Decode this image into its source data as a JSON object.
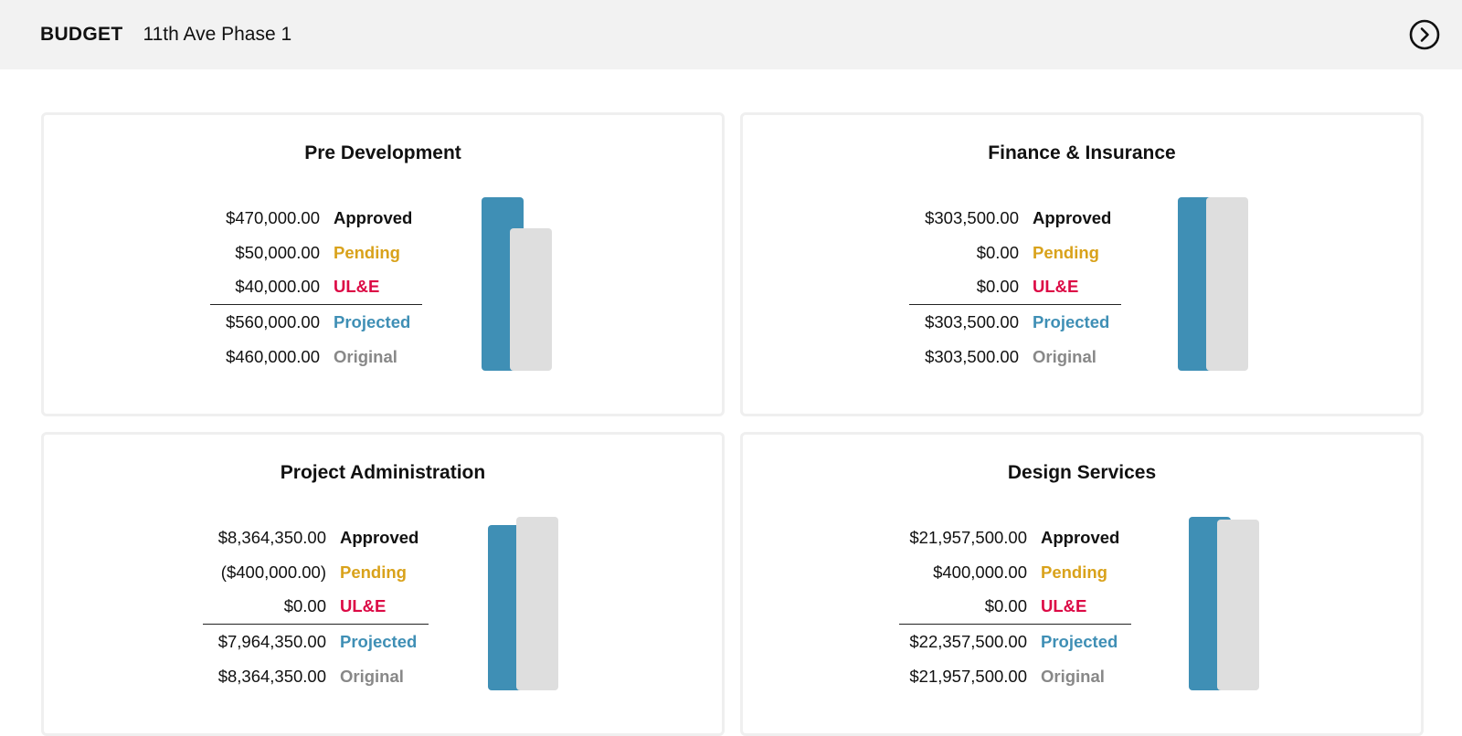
{
  "header": {
    "section": "BUDGET",
    "project": "11th Ave Phase 1",
    "next_icon": "chevron-right-circle-icon"
  },
  "colors": {
    "approved": "#111111",
    "pending": "#d9a21b",
    "ule": "#dc0a45",
    "projected": "#3f8fb5",
    "original": "#888888",
    "bar_projected": "#3f8fb5",
    "bar_original": "#dedede"
  },
  "cards": [
    {
      "title": "Pre Development",
      "approved": "$470,000.00",
      "pending": "$50,000.00",
      "ule": "$40,000.00",
      "projected": "$560,000.00",
      "original": "$460,000.00",
      "labels": {
        "approved": "Approved",
        "pending": "Pending",
        "ule": "UL&E",
        "projected": "Projected",
        "original": "Original"
      },
      "bar_values": {
        "projected": 560000,
        "original": 460000
      }
    },
    {
      "title": "Finance & Insurance",
      "approved": "$303,500.00",
      "pending": "$0.00",
      "ule": "$0.00",
      "projected": "$303,500.00",
      "original": "$303,500.00",
      "labels": {
        "approved": "Approved",
        "pending": "Pending",
        "ule": "UL&E",
        "projected": "Projected",
        "original": "Original"
      },
      "bar_values": {
        "projected": 303500,
        "original": 303500
      }
    },
    {
      "title": "Project Administration",
      "approved": "$8,364,350.00",
      "pending": "($400,000.00)",
      "ule": "$0.00",
      "projected": "$7,964,350.00",
      "original": "$8,364,350.00",
      "labels": {
        "approved": "Approved",
        "pending": "Pending",
        "ule": "UL&E",
        "projected": "Projected",
        "original": "Original"
      },
      "bar_values": {
        "projected": 7964350,
        "original": 8364350
      }
    },
    {
      "title": "Design Services",
      "approved": "$21,957,500.00",
      "pending": "$400,000.00",
      "ule": "$0.00",
      "projected": "$22,357,500.00",
      "original": "$21,957,500.00",
      "labels": {
        "approved": "Approved",
        "pending": "Pending",
        "ule": "UL&E",
        "projected": "Projected",
        "original": "Original"
      },
      "bar_values": {
        "projected": 22357500,
        "original": 21957500
      }
    }
  ]
}
